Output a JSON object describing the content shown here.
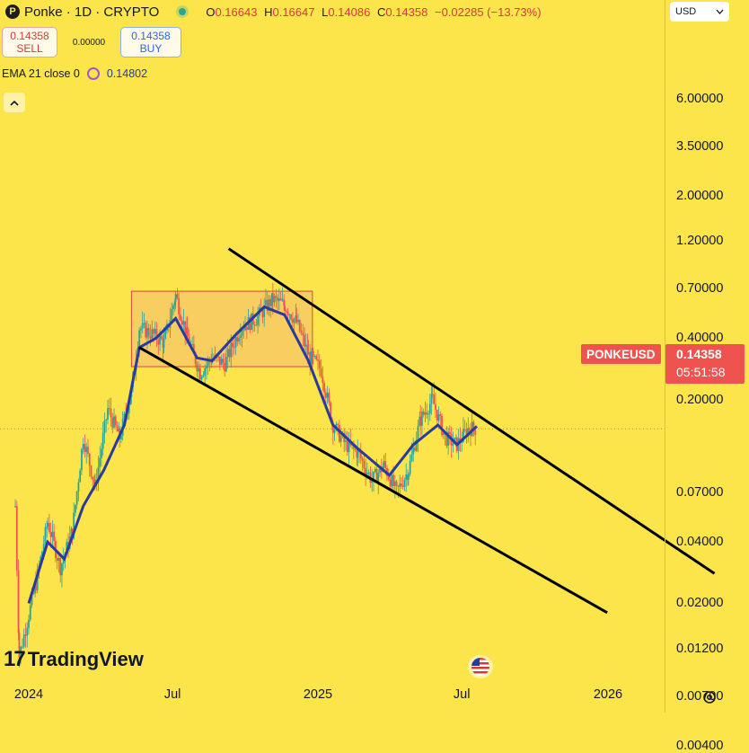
{
  "header": {
    "title": "Ponke · 1D · CRYPTO",
    "ohlc": {
      "o_label": "O",
      "o": "0.16643",
      "h_label": "H",
      "h": "0.16647",
      "l_label": "L",
      "l": "0.14086",
      "c_label": "C",
      "c": "0.14358",
      "change": "−0.02285 (−13.73%)"
    }
  },
  "trade": {
    "sell_price": "0.14358",
    "sell_label": "SELL",
    "spread": "0.00000",
    "buy_price": "0.14358",
    "buy_label": "BUY"
  },
  "indicator": {
    "label": "EMA 21 close 0",
    "value": "0.14802"
  },
  "currency": "USD",
  "price_label": {
    "symbol": "PONKEUSD",
    "price": "0.14358",
    "countdown": "05:51:58"
  },
  "branding": "TradingView",
  "icons": [
    "ponke-logo-icon",
    "live-dot-icon",
    "ema-settings-icon",
    "collapse-chevron-icon",
    "us-flag-icon",
    "gear-icon",
    "chevron-down-icon"
  ],
  "colors": {
    "background": "#fbe54b",
    "bull": "#26a69a",
    "bear": "#ef5350",
    "ema": "#2a3a9e",
    "channel": "#000000",
    "range_box": "#f7c56b"
  },
  "chart_data": {
    "type": "candlestick",
    "scale": "log",
    "symbol": "PONKEUSD",
    "timeframe": "1D",
    "y_ticks": [
      "6.00000",
      "3.50000",
      "2.00000",
      "1.20000",
      "0.70000",
      "0.40000",
      "0.20000",
      "0.07000",
      "0.04000",
      "0.02000",
      "0.01200",
      "0.00700",
      "0.00400"
    ],
    "x_ticks": [
      "2024",
      "Jul",
      "2025",
      "Jul",
      "2026"
    ],
    "price_series": [
      {
        "date": "2023-12-15",
        "price": 0.06
      },
      {
        "date": "2023-12-20",
        "price": 0.011
      },
      {
        "date": "2024-01-10",
        "price": 0.025
      },
      {
        "date": "2024-01-25",
        "price": 0.05
      },
      {
        "date": "2024-02-10",
        "price": 0.03
      },
      {
        "date": "2024-02-25",
        "price": 0.045
      },
      {
        "date": "2024-03-10",
        "price": 0.13
      },
      {
        "date": "2024-03-25",
        "price": 0.075
      },
      {
        "date": "2024-04-10",
        "price": 0.18
      },
      {
        "date": "2024-04-25",
        "price": 0.13
      },
      {
        "date": "2024-05-10",
        "price": 0.22
      },
      {
        "date": "2024-05-20",
        "price": 0.45
      },
      {
        "date": "2024-06-05",
        "price": 0.42
      },
      {
        "date": "2024-06-20",
        "price": 0.38
      },
      {
        "date": "2024-07-05",
        "price": 0.65
      },
      {
        "date": "2024-07-20",
        "price": 0.4
      },
      {
        "date": "2024-08-05",
        "price": 0.27
      },
      {
        "date": "2024-08-20",
        "price": 0.32
      },
      {
        "date": "2024-09-05",
        "price": 0.3
      },
      {
        "date": "2024-09-25",
        "price": 0.45
      },
      {
        "date": "2024-10-15",
        "price": 0.5
      },
      {
        "date": "2024-11-05",
        "price": 0.62
      },
      {
        "date": "2024-11-20",
        "price": 0.58
      },
      {
        "date": "2024-12-05",
        "price": 0.48
      },
      {
        "date": "2024-12-20",
        "price": 0.33
      },
      {
        "date": "2025-01-05",
        "price": 0.28
      },
      {
        "date": "2025-01-20",
        "price": 0.15
      },
      {
        "date": "2025-02-05",
        "price": 0.12
      },
      {
        "date": "2025-02-20",
        "price": 0.11
      },
      {
        "date": "2025-03-10",
        "price": 0.08
      },
      {
        "date": "2025-03-25",
        "price": 0.095
      },
      {
        "date": "2025-04-10",
        "price": 0.07
      },
      {
        "date": "2025-04-25",
        "price": 0.09
      },
      {
        "date": "2025-05-10",
        "price": 0.16
      },
      {
        "date": "2025-05-25",
        "price": 0.2
      },
      {
        "date": "2025-06-10",
        "price": 0.13
      },
      {
        "date": "2025-06-25",
        "price": 0.12
      },
      {
        "date": "2025-07-10",
        "price": 0.145
      },
      {
        "date": "2025-07-20",
        "price": 0.14358
      }
    ],
    "ema21": [
      {
        "date": "2024-01-01",
        "value": 0.02
      },
      {
        "date": "2024-01-25",
        "value": 0.04
      },
      {
        "date": "2024-02-15",
        "value": 0.033
      },
      {
        "date": "2024-03-10",
        "value": 0.06
      },
      {
        "date": "2024-04-05",
        "value": 0.09
      },
      {
        "date": "2024-05-01",
        "value": 0.15
      },
      {
        "date": "2024-05-20",
        "value": 0.36
      },
      {
        "date": "2024-06-10",
        "value": 0.4
      },
      {
        "date": "2024-07-05",
        "value": 0.5
      },
      {
        "date": "2024-08-01",
        "value": 0.32
      },
      {
        "date": "2024-08-20",
        "value": 0.31
      },
      {
        "date": "2024-09-20",
        "value": 0.42
      },
      {
        "date": "2024-10-25",
        "value": 0.57
      },
      {
        "date": "2024-11-20",
        "value": 0.52
      },
      {
        "date": "2024-12-20",
        "value": 0.31
      },
      {
        "date": "2025-01-20",
        "value": 0.15
      },
      {
        "date": "2025-02-20",
        "value": 0.115
      },
      {
        "date": "2025-04-01",
        "value": 0.085
      },
      {
        "date": "2025-05-01",
        "value": 0.12
      },
      {
        "date": "2025-06-01",
        "value": 0.15
      },
      {
        "date": "2025-06-25",
        "value": 0.12
      },
      {
        "date": "2025-07-20",
        "value": 0.148
      }
    ],
    "annotations": {
      "range_box": {
        "start": "2024-05-10",
        "end": "2024-12-25",
        "low": 0.29,
        "high": 0.68
      },
      "upper_trendline": [
        {
          "date": "2024-09-10",
          "price": 1.1
        },
        {
          "date": "2026-05-15",
          "price": 0.028
        }
      ],
      "lower_trendline": [
        {
          "date": "2024-05-20",
          "price": 0.36
        },
        {
          "date": "2025-12-31",
          "price": 0.018
        }
      ]
    },
    "last_price": 0.14358
  }
}
